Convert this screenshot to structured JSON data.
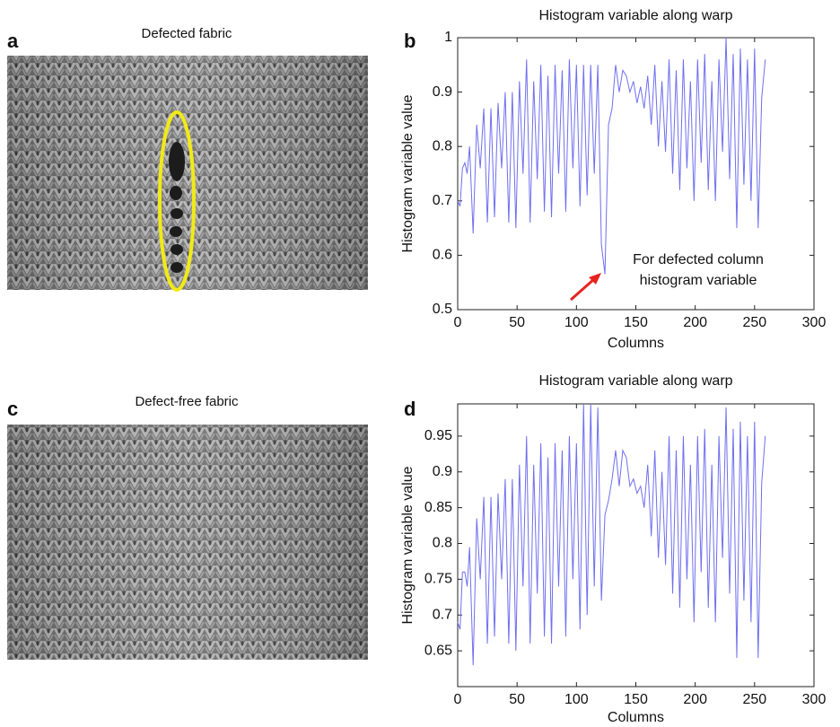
{
  "images": [
    {
      "label": "a",
      "title": "Defected fabric"
    },
    {
      "label": "c",
      "title": "Defect-free fabric"
    }
  ],
  "chart_data": [
    {
      "type": "line",
      "panel_label": "b",
      "title": "Histogram variable along warp",
      "x_label": "Columns",
      "y_label": "Histogram variable value",
      "color": "#6f6ff0",
      "xlim": [
        0,
        300
      ],
      "xticks": [
        0,
        50,
        100,
        150,
        200,
        250,
        300
      ],
      "ylim": [
        0.5,
        1
      ],
      "yticks": [
        0.5,
        0.6,
        0.7,
        0.8,
        0.9,
        1
      ],
      "annotation": [
        "For defected column",
        "histogram variable"
      ],
      "annotation_color": "#e8231f",
      "x": [
        0,
        2,
        4,
        6,
        8,
        10,
        13,
        16,
        19,
        22,
        25,
        28,
        31,
        34,
        37,
        40,
        43,
        46,
        49,
        52,
        55,
        58,
        61,
        64,
        67,
        70,
        73,
        76,
        79,
        82,
        85,
        88,
        91,
        94,
        97,
        100,
        103,
        106,
        109,
        112,
        115,
        118,
        121,
        124,
        127,
        130,
        133,
        136,
        139,
        142,
        145,
        148,
        151,
        154,
        157,
        160,
        163,
        166,
        169,
        172,
        175,
        178,
        181,
        184,
        187,
        190,
        193,
        196,
        199,
        202,
        205,
        208,
        211,
        214,
        217,
        220,
        223,
        226,
        229,
        232,
        235,
        238,
        241,
        244,
        247,
        250,
        253,
        256,
        259
      ],
      "values": [
        0.7,
        0.69,
        0.76,
        0.77,
        0.75,
        0.8,
        0.64,
        0.84,
        0.76,
        0.87,
        0.66,
        0.87,
        0.67,
        0.88,
        0.76,
        0.9,
        0.66,
        0.9,
        0.65,
        0.92,
        0.75,
        0.96,
        0.66,
        0.92,
        0.74,
        0.95,
        0.68,
        0.93,
        0.67,
        0.95,
        0.75,
        0.94,
        0.68,
        0.96,
        0.76,
        0.95,
        0.69,
        0.95,
        0.71,
        0.95,
        0.75,
        0.95,
        0.62,
        0.565,
        0.84,
        0.87,
        0.95,
        0.9,
        0.94,
        0.93,
        0.9,
        0.92,
        0.88,
        0.91,
        0.87,
        0.93,
        0.84,
        0.95,
        0.8,
        0.92,
        0.79,
        0.96,
        0.75,
        0.94,
        0.72,
        0.96,
        0.76,
        0.92,
        0.7,
        0.96,
        0.77,
        0.97,
        0.72,
        0.92,
        0.7,
        0.96,
        0.79,
        1,
        0.74,
        0.97,
        0.65,
        0.98,
        0.73,
        0.96,
        0.7,
        0.98,
        0.65,
        0.89,
        0.96
      ]
    },
    {
      "type": "line",
      "panel_label": "d",
      "title": "Histogram variable along warp",
      "x_label": "Columns",
      "y_label": "Histogram variable value",
      "color": "#6f6ff0",
      "xlim": [
        0,
        300
      ],
      "xticks": [
        0,
        50,
        100,
        150,
        200,
        250,
        300
      ],
      "ylim": [
        0.6,
        0.995
      ],
      "yticks": [
        0.65,
        0.7,
        0.75,
        0.8,
        0.85,
        0.9,
        0.95
      ],
      "x": [
        0,
        2,
        4,
        6,
        8,
        10,
        13,
        16,
        19,
        22,
        25,
        28,
        31,
        34,
        37,
        40,
        43,
        46,
        49,
        52,
        55,
        58,
        61,
        64,
        67,
        70,
        73,
        76,
        79,
        82,
        85,
        88,
        91,
        94,
        97,
        100,
        103,
        106,
        109,
        112,
        115,
        118,
        121,
        124,
        127,
        130,
        133,
        136,
        139,
        142,
        145,
        148,
        151,
        154,
        157,
        160,
        163,
        166,
        169,
        172,
        175,
        178,
        181,
        184,
        187,
        190,
        193,
        196,
        199,
        202,
        205,
        208,
        211,
        214,
        217,
        220,
        223,
        226,
        229,
        232,
        235,
        238,
        241,
        244,
        247,
        250,
        253,
        256,
        259
      ],
      "values": [
        0.69,
        0.68,
        0.76,
        0.76,
        0.74,
        0.795,
        0.63,
        0.835,
        0.75,
        0.865,
        0.66,
        0.865,
        0.67,
        0.87,
        0.75,
        0.89,
        0.66,
        0.89,
        0.65,
        0.91,
        0.74,
        0.95,
        0.66,
        0.91,
        0.73,
        0.94,
        0.67,
        0.92,
        0.66,
        0.94,
        0.74,
        0.93,
        0.67,
        0.95,
        0.75,
        0.94,
        0.68,
        0.995,
        0.7,
        0.995,
        0.74,
        0.99,
        0.72,
        0.84,
        0.86,
        0.89,
        0.93,
        0.88,
        0.93,
        0.92,
        0.88,
        0.89,
        0.87,
        0.88,
        0.85,
        0.91,
        0.81,
        0.93,
        0.78,
        0.9,
        0.77,
        0.95,
        0.73,
        0.93,
        0.71,
        0.95,
        0.75,
        0.91,
        0.69,
        0.95,
        0.76,
        0.96,
        0.71,
        0.91,
        0.69,
        0.95,
        0.78,
        0.99,
        0.73,
        0.96,
        0.64,
        0.97,
        0.72,
        0.95,
        0.69,
        0.97,
        0.64,
        0.885,
        0.95
      ]
    }
  ]
}
